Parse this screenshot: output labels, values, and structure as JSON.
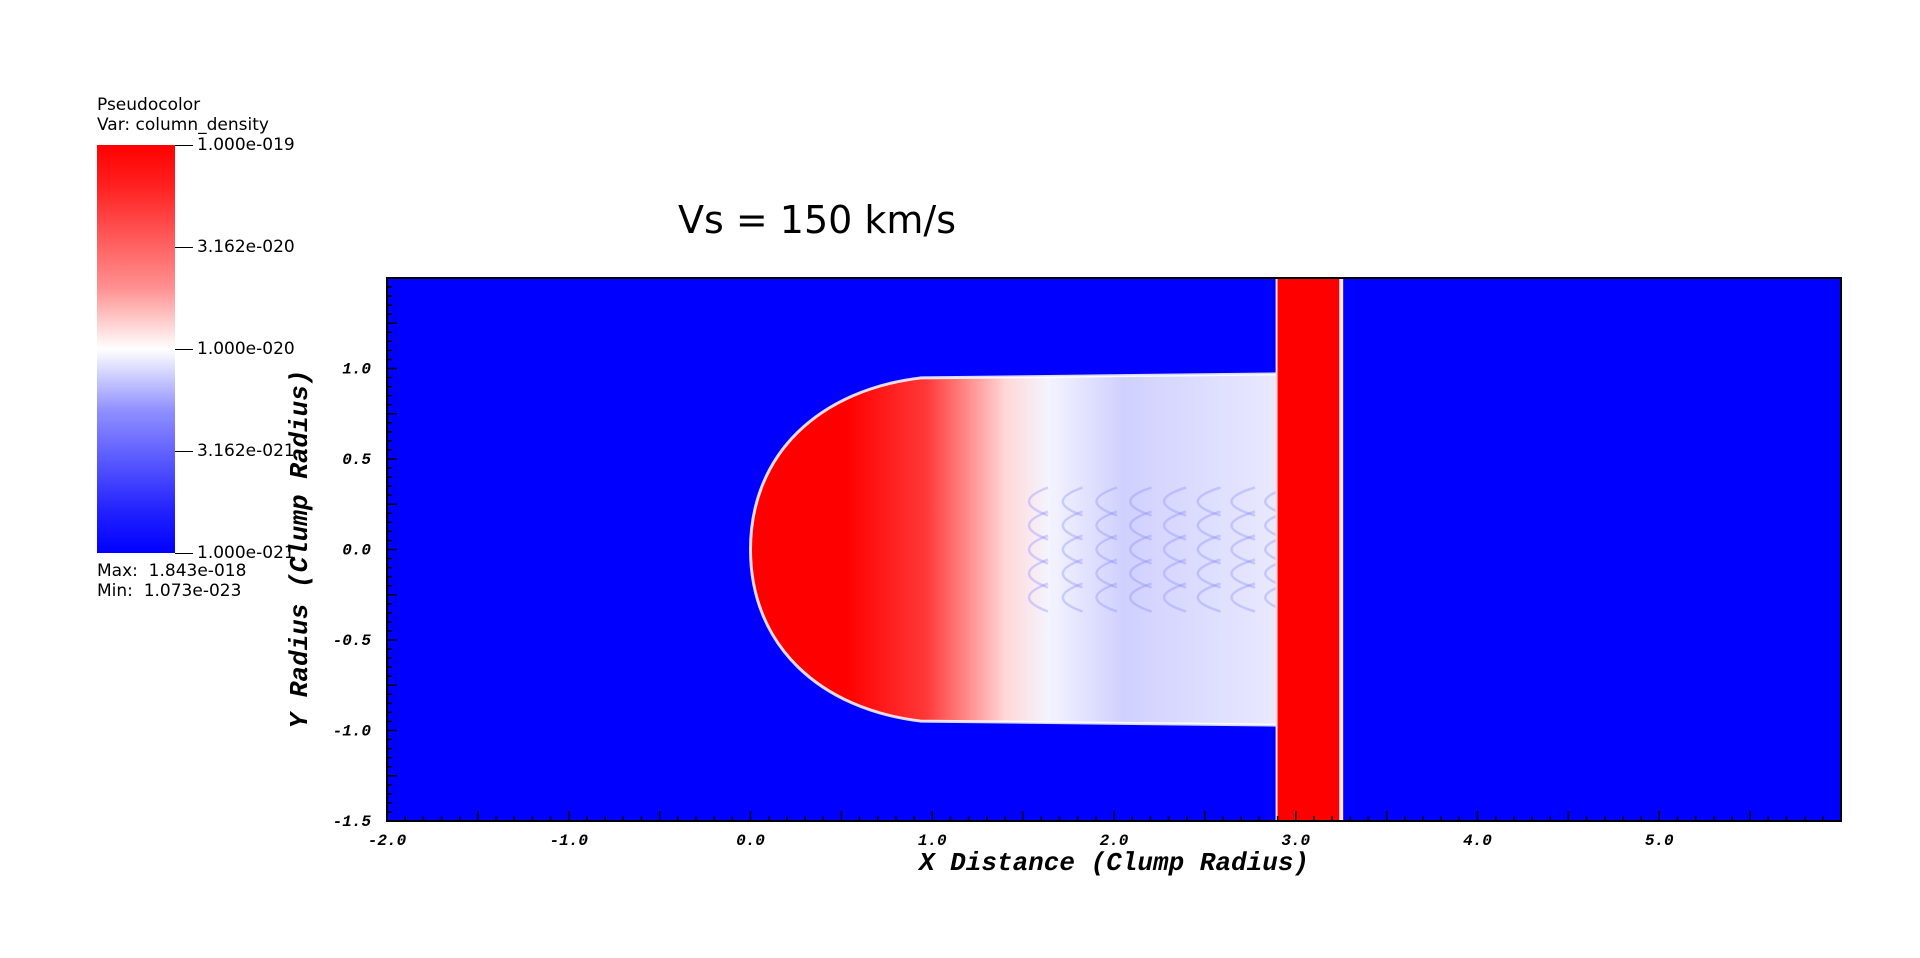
{
  "chart_data": {
    "type": "heatmap",
    "title": "Vs = 150 km/s",
    "xlabel": "X Distance (Clump Radius)",
    "ylabel": "Y Radius (Clump Radius)",
    "xlim": [
      -2.0,
      6.0
    ],
    "ylim": [
      -1.5,
      1.5
    ],
    "x_ticks": [
      -2.0,
      -1.0,
      0.0,
      1.0,
      2.0,
      3.0,
      4.0,
      5.0
    ],
    "x_tick_labels": [
      "-2.0",
      "-1.0",
      "0.0",
      "1.0",
      "2.0",
      "3.0",
      "4.0",
      "5.0"
    ],
    "y_ticks": [
      -1.5,
      -1.0,
      -0.5,
      0.0,
      0.5,
      1.0
    ],
    "y_tick_labels": [
      "-1.5",
      "-1.0",
      "-0.5",
      "0.0",
      "0.5",
      "1.0"
    ],
    "legend": {
      "plot_type": "Pseudocolor",
      "variable": "Var: column_density",
      "scale": "log",
      "range": [
        1e-21,
        1e-19
      ],
      "ticks": [
        1e-19,
        3.162e-20,
        1e-20,
        3.162e-21,
        1e-21
      ],
      "tick_labels": [
        "1.000e-019",
        "3.162e-020",
        "1.000e-020",
        "3.162e-021",
        "1.000e-021"
      ],
      "max_text": "Max:  1.843e-018",
      "min_text": "Min:  1.073e-023"
    },
    "colormap": [
      "#0000ff",
      "#ffffff",
      "#ff0000"
    ],
    "features": {
      "clump_head_x": 0.0,
      "clump_tail_x": 2.9,
      "clump_half_width": 0.97,
      "shock_band_x": [
        2.9,
        3.25
      ]
    }
  }
}
